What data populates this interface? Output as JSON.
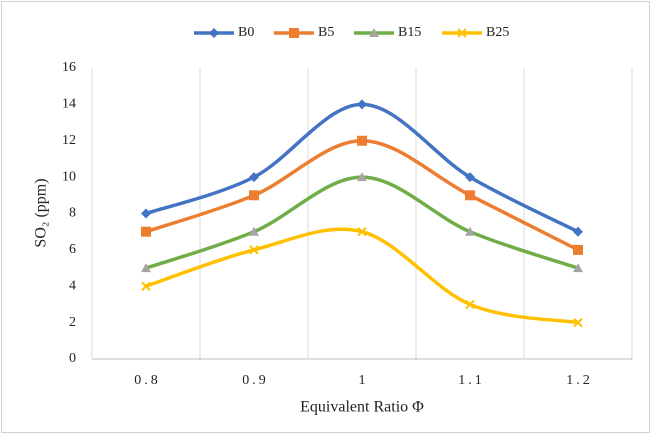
{
  "chart_data": {
    "type": "line",
    "smooth": true,
    "y_label": "SO₂ (ppm)",
    "x_label": "Equivalent Ratio Φ",
    "categories": [
      "0.8",
      "0.9",
      "1",
      "1.1",
      "1.2"
    ],
    "series": [
      {
        "name": "B0",
        "color": "#4472c4",
        "marker": "diamond",
        "marker_color": "#4472c4",
        "values": [
          8,
          10,
          14,
          10,
          7
        ]
      },
      {
        "name": "B5",
        "color": "#ed7d31",
        "marker": "square",
        "marker_color": "#ed7d31",
        "values": [
          7,
          9,
          12,
          9,
          6
        ]
      },
      {
        "name": "B15",
        "color": "#70ad47",
        "marker": "triangle",
        "marker_color": "#a5a5a5",
        "values": [
          5,
          7,
          10,
          7,
          5
        ]
      },
      {
        "name": "B25",
        "color": "#ffc000",
        "marker": "x",
        "marker_color": "#ffc000",
        "values": [
          4,
          6,
          7,
          3,
          2
        ]
      }
    ],
    "ylim": [
      0,
      16
    ],
    "yticks": [
      0,
      2,
      4,
      6,
      8,
      10,
      12,
      14,
      16
    ],
    "legend": "top"
  }
}
